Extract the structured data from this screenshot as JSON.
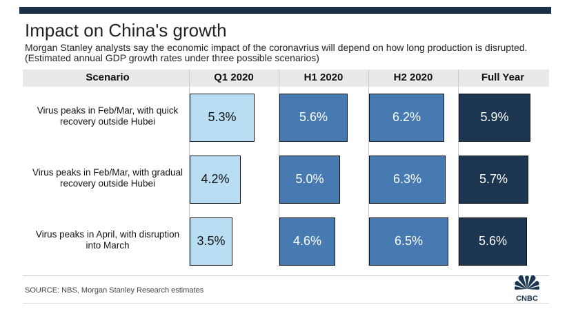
{
  "title": "Impact on China's growth",
  "subtitle": "Morgan Stanley analysts say the economic impact of the coronavrius will depend on how long production is disrupted. (Estimated annual GDP growth rates under three possible scenarios)",
  "source": "SOURCE: NBS, Morgan Stanley Research estimates",
  "logo_text": "CNBC",
  "colors": {
    "q1": "#b9def3",
    "h1": "#477ab0",
    "h2": "#477ab0",
    "full_year": "#1c3550",
    "header_bg": "#e9e9e9"
  },
  "chart_data": {
    "type": "table",
    "title": "Impact on China's growth",
    "header": "Scenario",
    "columns": [
      "Q1 2020",
      "H1 2020",
      "H2 2020",
      "Full Year"
    ],
    "rows": [
      {
        "label": "Virus peaks in Feb/Mar, with quick recovery outside Hubei",
        "values": [
          5.3,
          5.6,
          6.2,
          5.9
        ],
        "display": [
          "5.3%",
          "5.6%",
          "6.2%",
          "5.9%"
        ]
      },
      {
        "label": "Virus peaks in Feb/Mar, with gradual recovery outside Hubei",
        "values": [
          4.2,
          5.0,
          6.3,
          5.7
        ],
        "display": [
          "4.2%",
          "5.0%",
          "6.3%",
          "5.7%"
        ]
      },
      {
        "label": "Virus peaks in April, with disruption into March",
        "values": [
          3.5,
          4.6,
          6.5,
          5.6
        ],
        "display": [
          "3.5%",
          "4.6%",
          "6.5%",
          "5.6%"
        ]
      }
    ],
    "units": "%"
  }
}
